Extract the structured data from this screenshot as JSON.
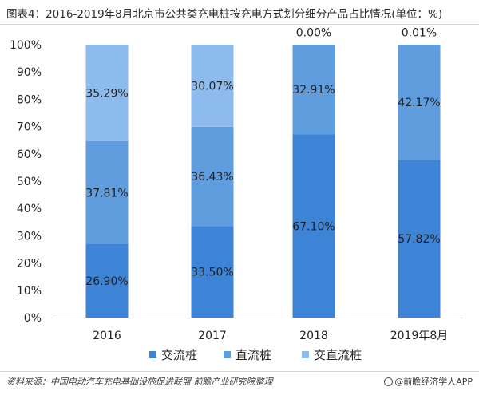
{
  "title": "图表4：2016-2019年8月北京市公共类充电桩按充电方式划分细分产品占比情况(单位：%)",
  "footer": {
    "source": "资料来源：中国电动汽车充电基础设施促进联盟 前瞻产业研究院整理",
    "brand": "@前瞻经济学人APP"
  },
  "colors": {
    "ac": "#3d84d6",
    "dc": "#5f9ddf",
    "acdc": "#8ebbed",
    "axis_text": "#222222",
    "grid": "#d9d9d9"
  },
  "chart_data": {
    "type": "bar",
    "stacked": true,
    "categories": [
      "2016",
      "2017",
      "2018",
      "2019年8月"
    ],
    "series": [
      {
        "name": "交流桩",
        "values": [
          26.9,
          33.5,
          67.1,
          57.82
        ],
        "labels": [
          "26.90%",
          "33.50%",
          "67.10%",
          "57.82%"
        ]
      },
      {
        "name": "直流桩",
        "values": [
          37.81,
          36.43,
          32.91,
          42.17
        ],
        "labels": [
          "37.81%",
          "36.43%",
          "32.91%",
          "42.17%"
        ]
      },
      {
        "name": "交直流桩",
        "values": [
          35.29,
          30.07,
          0.0,
          0.01
        ],
        "labels": [
          "35.29%",
          "30.07%",
          "0.00%",
          "0.01%"
        ]
      }
    ],
    "yticks": [
      "0%",
      "10%",
      "20%",
      "30%",
      "40%",
      "50%",
      "60%",
      "70%",
      "80%",
      "90%",
      "100%"
    ],
    "ylim": [
      0,
      100
    ],
    "legend_position": "bottom",
    "grid": false
  }
}
